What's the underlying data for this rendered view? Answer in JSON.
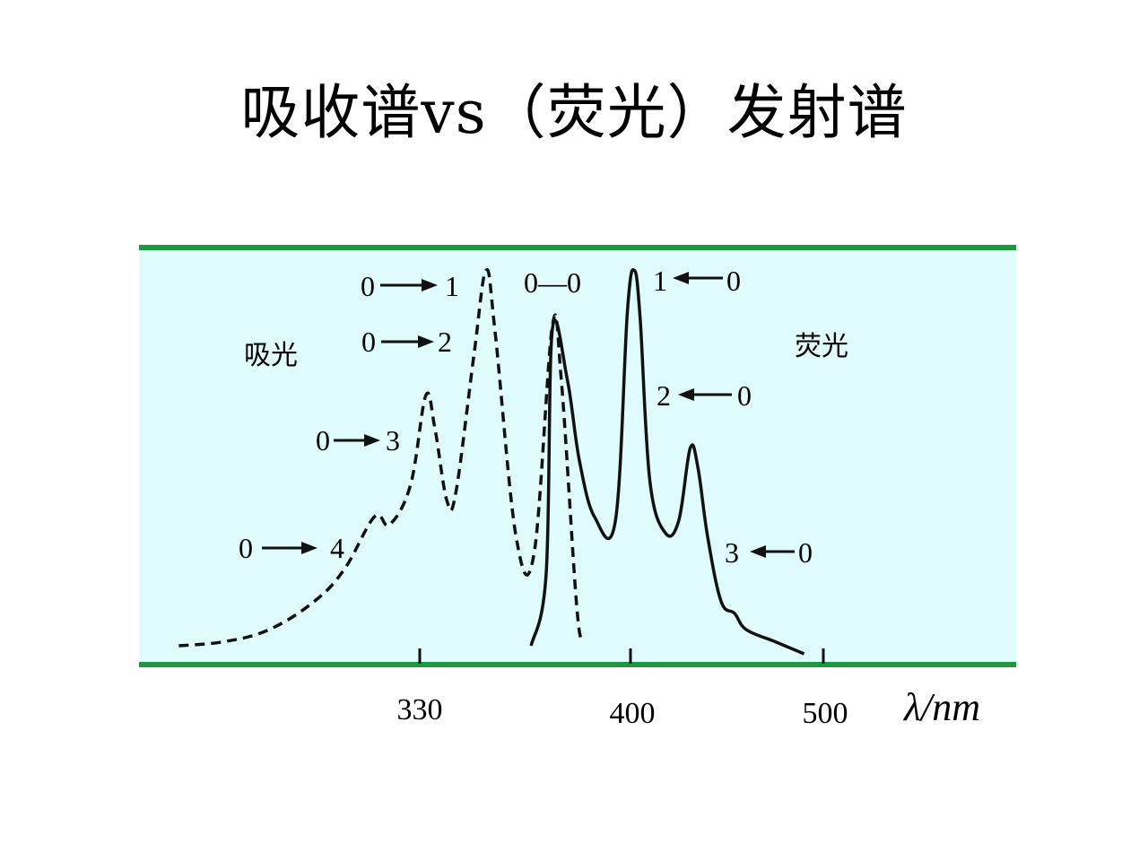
{
  "slide": {
    "title": "吸收谱vs（荧光）发射谱"
  },
  "chart_data": {
    "type": "line",
    "xlabel": "λ/nm",
    "x_ticks": [
      "330",
      "400",
      "500"
    ],
    "colors": {
      "background": "#e0fbfb",
      "border": "#1a9a3a",
      "line": "#111111"
    },
    "series": [
      {
        "name": "吸光",
        "style": "dashed",
        "points": [
          [
            250,
            0.04
          ],
          [
            265,
            0.05
          ],
          [
            280,
            0.08
          ],
          [
            295,
            0.15
          ],
          [
            305,
            0.23
          ],
          [
            315,
            0.36
          ],
          [
            320,
            0.34
          ],
          [
            327,
            0.44
          ],
          [
            332,
            0.66
          ],
          [
            335,
            0.58
          ],
          [
            339,
            0.4
          ],
          [
            342,
            0.42
          ],
          [
            348,
            0.76
          ],
          [
            352,
            0.97
          ],
          [
            355,
            0.82
          ],
          [
            362,
            0.31
          ],
          [
            368,
            0.27
          ],
          [
            374,
            0.83
          ],
          [
            377,
            0.7
          ],
          [
            382,
            0.15
          ],
          [
            384,
            0.05
          ]
        ]
      },
      {
        "name": "荧光",
        "style": "solid",
        "points": [
          [
            367,
            0.04
          ],
          [
            372,
            0.22
          ],
          [
            374,
            0.82
          ],
          [
            379,
            0.7
          ],
          [
            383,
            0.5
          ],
          [
            388,
            0.36
          ],
          [
            395,
            0.35
          ],
          [
            399,
            0.87
          ],
          [
            402,
            0.97
          ],
          [
            405,
            0.85
          ],
          [
            410,
            0.45
          ],
          [
            418,
            0.32
          ],
          [
            425,
            0.35
          ],
          [
            431,
            0.53
          ],
          [
            435,
            0.48
          ],
          [
            440,
            0.31
          ],
          [
            447,
            0.15
          ],
          [
            454,
            0.12
          ],
          [
            460,
            0.08
          ],
          [
            475,
            0.05
          ],
          [
            490,
            0.02
          ]
        ]
      }
    ],
    "annotations": [
      {
        "text": "0 → 1",
        "series": "吸光"
      },
      {
        "text": "0 → 2",
        "series": "吸光"
      },
      {
        "text": "0 → 3",
        "series": "吸光"
      },
      {
        "text": "0 → 4",
        "series": "吸光"
      },
      {
        "text": "0—0",
        "series": "shared"
      },
      {
        "text": "1 ← 0",
        "series": "荧光"
      },
      {
        "text": "2 ← 0",
        "series": "荧光"
      },
      {
        "text": "3 ← 0",
        "series": "荧光"
      }
    ],
    "labels": {
      "absorption": "吸光",
      "fluorescence": "荧光"
    },
    "anno_text": {
      "a01": "0",
      "a01b": "1",
      "a02": "0",
      "a02b": "2",
      "a03": "0",
      "a03b": "3",
      "a04": "0",
      "a04b": "4",
      "a00": "0—0",
      "f10": "1",
      "f10b": "0",
      "f20": "2",
      "f20b": "0",
      "f30": "3",
      "f30b": "0"
    }
  }
}
